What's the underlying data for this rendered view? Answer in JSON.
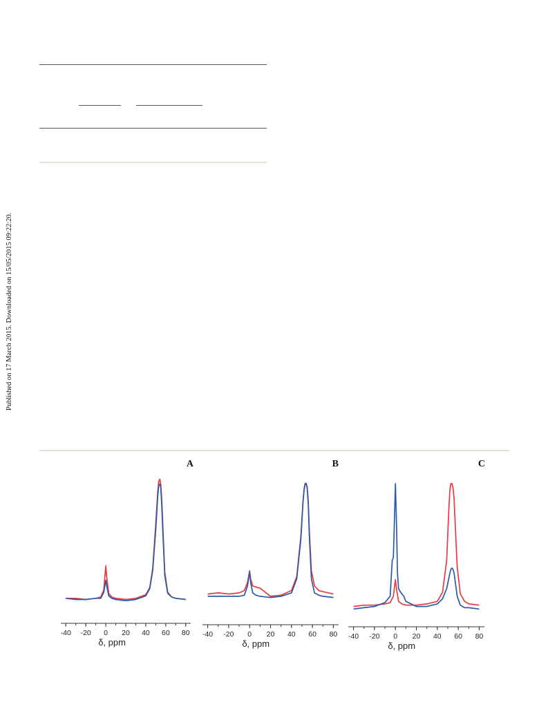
{
  "sidebar_note": "Published on 17 March 2015. Downloaded on 15/05/2015 09:22:20.",
  "colors": {
    "red": "#e8383d",
    "blue": "#2a5aa6",
    "axis": "#333333"
  },
  "chart_data": [
    {
      "type": "line",
      "panel_label": "A",
      "xlabel": "δ, ppm",
      "xlim": [
        -45,
        85
      ],
      "ylim": [
        0,
        1.08
      ],
      "xticks": [
        -40,
        -20,
        0,
        20,
        40,
        60,
        80
      ],
      "y_axis_shown": false,
      "series": [
        {
          "color": "red",
          "x": [
            -40,
            -30,
            -20,
            -10,
            -5,
            -2,
            0,
            1,
            3,
            6,
            10,
            20,
            30,
            40,
            44,
            47,
            50,
            52,
            53,
            54,
            55,
            56,
            57,
            59,
            62,
            66,
            70,
            80
          ],
          "y": [
            0.03,
            0.03,
            0.02,
            0.03,
            0.04,
            0.1,
            0.3,
            0.2,
            0.07,
            0.04,
            0.03,
            0.02,
            0.03,
            0.06,
            0.12,
            0.28,
            0.65,
            0.92,
            1.0,
            1.02,
            0.98,
            0.85,
            0.65,
            0.25,
            0.08,
            0.04,
            0.03,
            0.02
          ]
        },
        {
          "color": "blue",
          "x": [
            -40,
            -30,
            -20,
            -10,
            -5,
            -2,
            0,
            1,
            3,
            6,
            10,
            20,
            30,
            40,
            44,
            47,
            50,
            52,
            53,
            54,
            55,
            56,
            57,
            59,
            62,
            66,
            70,
            80
          ],
          "y": [
            0.03,
            0.02,
            0.02,
            0.03,
            0.03,
            0.08,
            0.18,
            0.13,
            0.05,
            0.03,
            0.02,
            0.01,
            0.02,
            0.05,
            0.11,
            0.26,
            0.6,
            0.88,
            0.97,
            0.98,
            0.95,
            0.8,
            0.6,
            0.22,
            0.07,
            0.04,
            0.03,
            0.02
          ]
        }
      ]
    },
    {
      "type": "line",
      "panel_label": "B",
      "xlabel": "δ, ppm",
      "xlim": [
        -45,
        85
      ],
      "ylim": [
        0,
        1.08
      ],
      "xticks": [
        -40,
        -20,
        0,
        20,
        40,
        60,
        80
      ],
      "y_axis_shown": false,
      "series": [
        {
          "color": "red",
          "x": [
            -40,
            -30,
            -20,
            -10,
            -5,
            -2,
            0,
            1,
            3,
            6,
            10,
            20,
            30,
            40,
            45,
            49,
            51,
            52,
            53,
            54,
            55,
            56,
            57,
            59,
            62,
            66,
            70,
            80
          ],
          "y": [
            0.05,
            0.06,
            0.05,
            0.06,
            0.08,
            0.15,
            0.25,
            0.18,
            0.12,
            0.11,
            0.1,
            0.03,
            0.04,
            0.08,
            0.2,
            0.55,
            0.85,
            0.95,
            1.0,
            1.0,
            0.97,
            0.85,
            0.6,
            0.25,
            0.12,
            0.08,
            0.07,
            0.05
          ]
        },
        {
          "color": "blue",
          "x": [
            -40,
            -30,
            -20,
            -10,
            -5,
            -2,
            0,
            1,
            3,
            6,
            10,
            20,
            30,
            40,
            45,
            49,
            51,
            52,
            53,
            54,
            55,
            56,
            57,
            59,
            62,
            66,
            70,
            80
          ],
          "y": [
            0.03,
            0.03,
            0.03,
            0.03,
            0.04,
            0.12,
            0.24,
            0.15,
            0.06,
            0.04,
            0.03,
            0.02,
            0.03,
            0.06,
            0.18,
            0.52,
            0.84,
            0.94,
            0.99,
            1.0,
            0.96,
            0.82,
            0.55,
            0.18,
            0.06,
            0.04,
            0.03,
            0.02
          ]
        }
      ]
    },
    {
      "type": "line",
      "panel_label": "C",
      "xlabel": "δ, ppm",
      "xlim": [
        -45,
        85
      ],
      "ylim": [
        0,
        1.08
      ],
      "xticks": [
        -40,
        -20,
        0,
        20,
        40,
        60,
        80
      ],
      "y_axis_shown": false,
      "series": [
        {
          "color": "red",
          "x": [
            -40,
            -30,
            -20,
            -10,
            -5,
            -2,
            0,
            1,
            3,
            6,
            10,
            20,
            30,
            40,
            45,
            49,
            51,
            52,
            53,
            54,
            55,
            56,
            57,
            59,
            62,
            66,
            70,
            80
          ],
          "y": [
            0.04,
            0.05,
            0.05,
            0.06,
            0.07,
            0.12,
            0.25,
            0.18,
            0.08,
            0.06,
            0.05,
            0.05,
            0.06,
            0.08,
            0.15,
            0.4,
            0.8,
            0.95,
            1.0,
            1.0,
            0.97,
            0.88,
            0.7,
            0.35,
            0.14,
            0.08,
            0.06,
            0.05
          ]
        },
        {
          "color": "blue",
          "x": [
            -40,
            -30,
            -20,
            -10,
            -5,
            -3,
            -2,
            -1,
            0,
            1,
            2,
            3,
            5,
            8,
            10,
            20,
            30,
            40,
            45,
            49,
            52,
            53,
            54,
            55,
            56,
            57,
            59,
            62,
            66,
            70,
            80
          ],
          "y": [
            0.02,
            0.03,
            0.04,
            0.07,
            0.12,
            0.4,
            0.42,
            0.7,
            1.0,
            0.7,
            0.3,
            0.18,
            0.15,
            0.12,
            0.08,
            0.04,
            0.04,
            0.06,
            0.1,
            0.18,
            0.3,
            0.33,
            0.34,
            0.33,
            0.3,
            0.24,
            0.12,
            0.05,
            0.03,
            0.03,
            0.02
          ]
        }
      ]
    }
  ]
}
